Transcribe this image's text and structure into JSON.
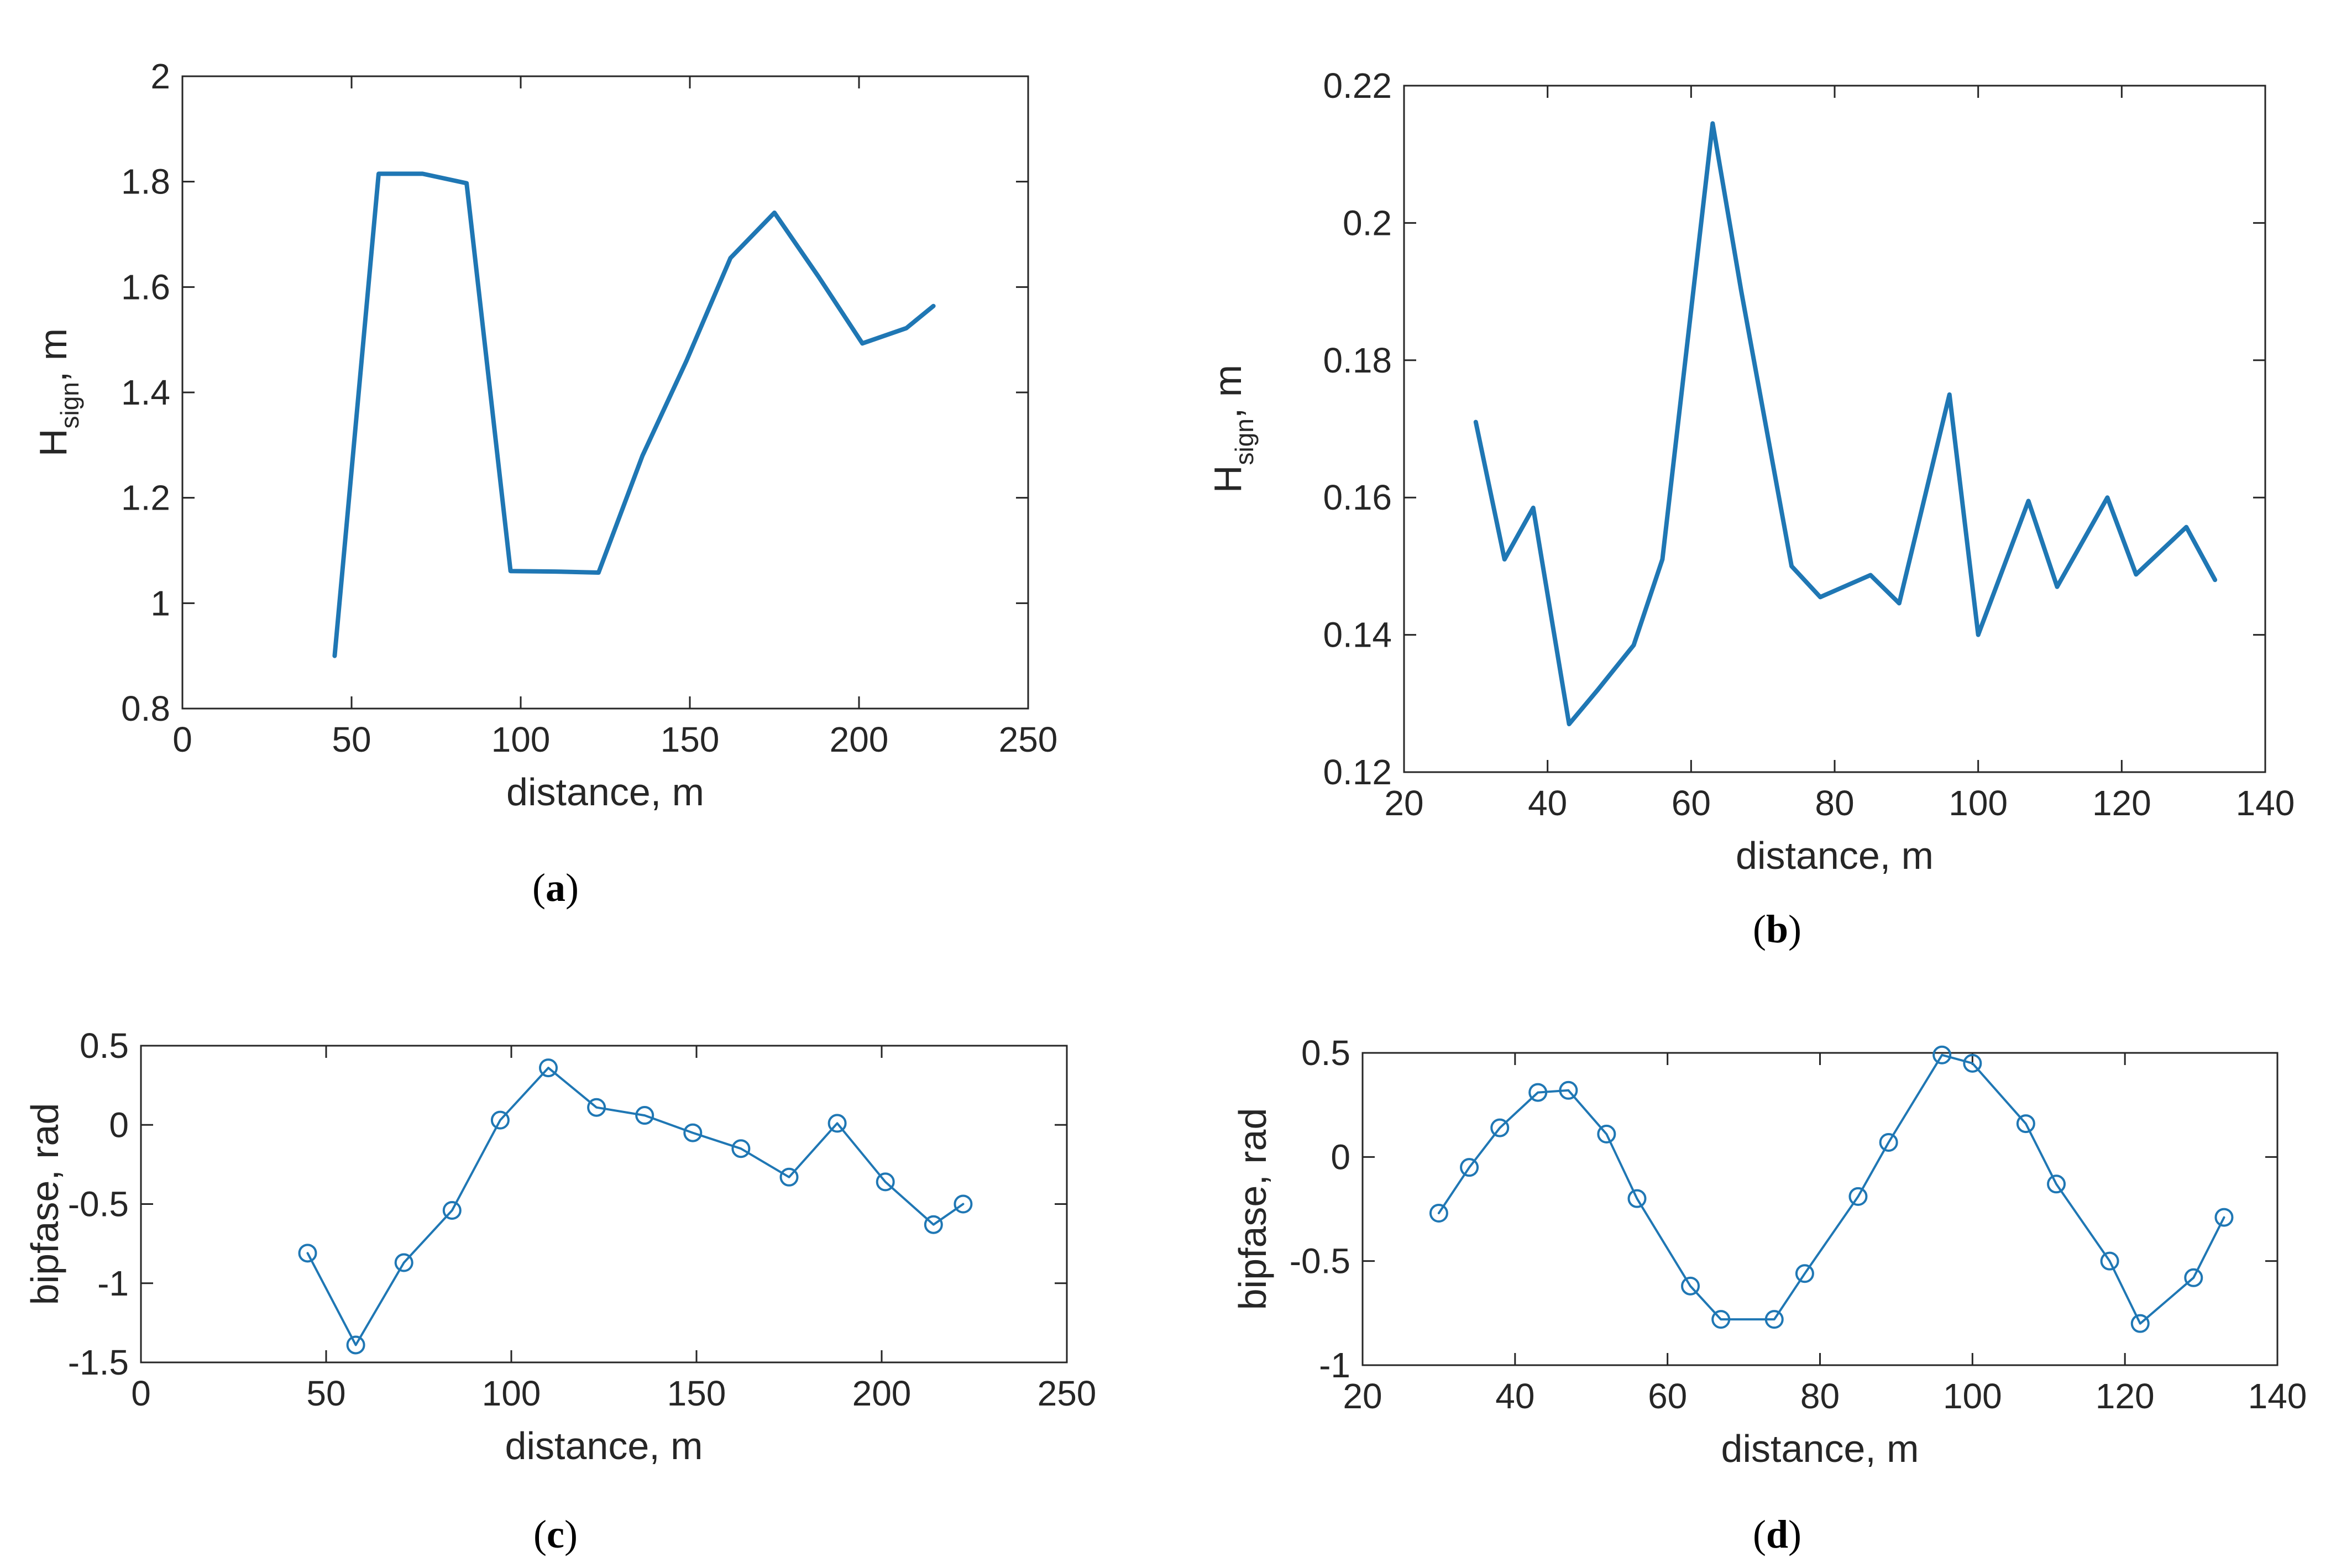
{
  "chart_data": [
    {
      "id": "a",
      "type": "line",
      "caption": "a",
      "xlabel": "distance, m",
      "ylabel_main": "H",
      "ylabel_sub": "sign",
      "ylabel_suffix": ", m",
      "xlim": [
        0,
        250
      ],
      "ylim": [
        0.8,
        2
      ],
      "xticks": [
        0,
        50,
        100,
        150,
        200,
        250
      ],
      "yticks": [
        0.8,
        1,
        1.2,
        1.4,
        1.6,
        1.8,
        2
      ],
      "xtick_labels": [
        "0",
        "50",
        "100",
        "150",
        "200",
        "250"
      ],
      "ytick_labels": [
        "0.8",
        "1",
        "1.2",
        "1.4",
        "1.6",
        "1.8",
        "2"
      ],
      "markers": false,
      "series": [
        {
          "name": "Hsign",
          "color": "#1f77b4",
          "x": [
            45,
            58,
            71,
            84,
            97,
            110,
            123,
            136,
            149,
            162,
            175,
            188,
            201,
            214,
            222
          ],
          "y": [
            0.9,
            1.815,
            1.815,
            1.797,
            1.061,
            1.06,
            1.058,
            1.28,
            1.46,
            1.655,
            1.741,
            1.62,
            1.493,
            1.522,
            1.564
          ]
        }
      ]
    },
    {
      "id": "b",
      "type": "line",
      "caption": "b",
      "xlabel": "distance, m",
      "ylabel_main": "H",
      "ylabel_sub": "sign",
      "ylabel_suffix": ", m",
      "xlim": [
        20,
        140
      ],
      "ylim": [
        0.12,
        0.22
      ],
      "xticks": [
        20,
        40,
        60,
        80,
        100,
        120,
        140
      ],
      "yticks": [
        0.12,
        0.14,
        0.16,
        0.18,
        0.2,
        0.22
      ],
      "xtick_labels": [
        "20",
        "40",
        "60",
        "80",
        "100",
        "120",
        "140"
      ],
      "ytick_labels": [
        "0.12",
        "0.14",
        "0.16",
        "0.18",
        "0.2",
        "0.22"
      ],
      "markers": false,
      "series": [
        {
          "name": "Hsign",
          "color": "#1f77b4",
          "x": [
            30,
            34,
            38,
            43,
            47,
            52,
            56,
            63,
            67,
            74,
            78,
            85,
            89,
            96,
            100,
            107,
            111,
            118,
            122,
            129,
            133
          ],
          "y": [
            0.171,
            0.151,
            0.1585,
            0.127,
            0.132,
            0.1385,
            0.151,
            0.2145,
            0.19,
            0.15,
            0.1455,
            0.1487,
            0.1446,
            0.175,
            0.14,
            0.1595,
            0.147,
            0.16,
            0.1488,
            0.1557,
            0.148
          ]
        }
      ]
    },
    {
      "id": "c",
      "type": "line",
      "caption": "c",
      "xlabel": "distance, m",
      "ylabel": "bipfase, rad",
      "xlim": [
        0,
        250
      ],
      "ylim": [
        -1.5,
        0.5
      ],
      "xticks": [
        0,
        50,
        100,
        150,
        200,
        250
      ],
      "yticks": [
        -1.5,
        -1,
        -0.5,
        0,
        0.5
      ],
      "xtick_labels": [
        "0",
        "50",
        "100",
        "150",
        "200",
        "250"
      ],
      "ytick_labels": [
        "-1.5",
        "-1",
        "-0.5",
        "0",
        "0.5"
      ],
      "markers": true,
      "series": [
        {
          "name": "bipfase",
          "color": "#1f77b4",
          "x": [
            45,
            58,
            71,
            84,
            97,
            110,
            123,
            136,
            149,
            162,
            175,
            188,
            201,
            214,
            222
          ],
          "y": [
            -0.81,
            -1.39,
            -0.87,
            -0.54,
            0.03,
            0.36,
            0.11,
            0.06,
            -0.05,
            -0.15,
            -0.33,
            0.01,
            -0.36,
            -0.63,
            -0.5
          ]
        }
      ]
    },
    {
      "id": "d",
      "type": "line",
      "caption": "d",
      "xlabel": "distance, m",
      "ylabel": "bipfase, rad",
      "xlim": [
        20,
        140
      ],
      "ylim": [
        -1,
        0.5
      ],
      "xticks": [
        20,
        40,
        60,
        80,
        100,
        120,
        140
      ],
      "yticks": [
        -1,
        -0.5,
        0,
        0.5
      ],
      "xtick_labels": [
        "20",
        "40",
        "60",
        "80",
        "100",
        "120",
        "140"
      ],
      "ytick_labels": [
        "-1",
        "-0.5",
        "0",
        "0.5"
      ],
      "markers": true,
      "series": [
        {
          "name": "bipfase",
          "color": "#1f77b4",
          "x": [
            30,
            34,
            38,
            43,
            47,
            52,
            56,
            63,
            67,
            74,
            78,
            85,
            89,
            96,
            100,
            107,
            111,
            118,
            122,
            129,
            133
          ],
          "y": [
            -0.27,
            -0.05,
            0.14,
            0.31,
            0.32,
            0.11,
            -0.2,
            -0.62,
            -0.78,
            -0.78,
            -0.56,
            -0.19,
            0.07,
            0.49,
            0.45,
            0.16,
            -0.13,
            -0.5,
            -0.8,
            -0.58,
            -0.29
          ]
        }
      ]
    }
  ]
}
